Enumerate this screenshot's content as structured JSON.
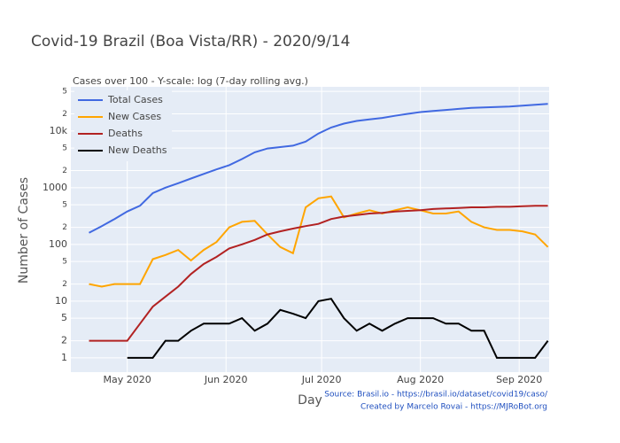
{
  "chart_data": {
    "type": "line",
    "title": "Covid-19 Brazil (Boa Vista/RR) - 2020/9/14",
    "subtitle": "Cases over 100 - Y-scale: log (7-day rolling avg.)",
    "x_label": "Day",
    "y_label": "Number of Cases",
    "annotations": [
      "Source: Brasil.io - https://brasil.io/dataset/covid19/caso/",
      "Created by Marcelo Rovai - https://MJRoBot.org"
    ],
    "ylog": true,
    "grid": true,
    "legend": "upper-left",
    "plot_background": "#e5ecf6",
    "xlim": [
      104.3,
      254.4
    ],
    "xticks": [
      {
        "value": 122,
        "label": "May 2020"
      },
      {
        "value": 153,
        "label": "Jun 2020"
      },
      {
        "value": 183,
        "label": "Jul 2020"
      },
      {
        "value": 214,
        "label": "Aug 2020"
      },
      {
        "value": 245,
        "label": "Sep 2020"
      }
    ],
    "ylim": [
      0.56,
      60000
    ],
    "yticks": [
      1,
      2,
      5,
      10,
      {
        "value": 20,
        "label": "2"
      },
      {
        "value": 50,
        "label": "5"
      },
      100,
      {
        "value": 200,
        "label": "2"
      },
      {
        "value": 500,
        "label": "5"
      },
      1000,
      {
        "value": 2000,
        "label": "2"
      },
      {
        "value": 5000,
        "label": "5"
      },
      {
        "value": 10000,
        "label": "10k"
      },
      {
        "value": 20000,
        "label": "2"
      },
      {
        "value": 50000,
        "label": "5"
      }
    ],
    "x": [
      110,
      114,
      118,
      122,
      126,
      130,
      134,
      138,
      142,
      146,
      150,
      154,
      158,
      162,
      166,
      170,
      174,
      178,
      182,
      186,
      190,
      194,
      198,
      202,
      206,
      210,
      214,
      218,
      222,
      226,
      230,
      234,
      238,
      242,
      246,
      250,
      254
    ],
    "series": [
      {
        "name": "Total Cases",
        "color": "#4169e1",
        "values": [
          160,
          210,
          280,
          380,
          480,
          800,
          1000,
          1200,
          1450,
          1750,
          2100,
          2500,
          3200,
          4200,
          4900,
          5200,
          5500,
          6500,
          9000,
          11500,
          13500,
          15000,
          16000,
          17000,
          18500,
          20000,
          21500,
          22500,
          23500,
          24500,
          25500,
          26000,
          26500,
          27000,
          28000,
          29000,
          30000
        ]
      },
      {
        "name": "New Cases",
        "color": "#ffa500",
        "values": [
          20,
          18,
          20,
          20,
          20,
          55,
          65,
          80,
          52,
          80,
          110,
          200,
          250,
          260,
          150,
          90,
          70,
          450,
          650,
          700,
          300,
          350,
          400,
          350,
          400,
          450,
          400,
          350,
          350,
          380,
          250,
          200,
          180,
          180,
          170,
          150,
          90
        ]
      },
      {
        "name": "Deaths",
        "color": "#b22222",
        "values": [
          2,
          2,
          2,
          2,
          4,
          8,
          12,
          18,
          30,
          45,
          60,
          85,
          100,
          120,
          150,
          170,
          190,
          210,
          230,
          280,
          310,
          330,
          350,
          360,
          380,
          390,
          400,
          420,
          430,
          440,
          450,
          450,
          460,
          460,
          470,
          480,
          480
        ]
      },
      {
        "name": "New Deaths",
        "color": "#000000",
        "values": [
          null,
          null,
          null,
          1,
          1,
          1,
          2,
          2,
          3,
          4,
          4,
          4,
          5,
          3,
          4,
          7,
          6,
          5,
          10,
          11,
          5,
          3,
          4,
          3,
          4,
          5,
          5,
          5,
          4,
          4,
          3,
          3,
          1,
          1,
          1,
          1,
          2
        ]
      }
    ]
  }
}
